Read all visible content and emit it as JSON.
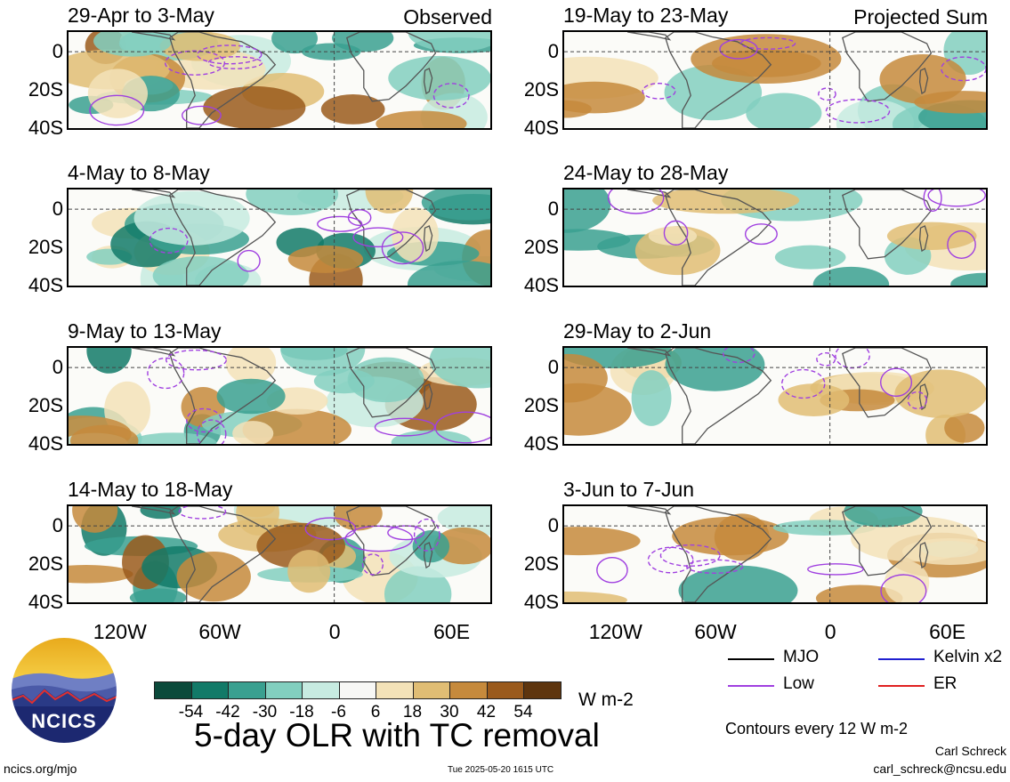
{
  "observed_label": "Observed",
  "projected_label": "Projected Sum",
  "panels_left": [
    {
      "title": "29-Apr to 3-May"
    },
    {
      "title": "4-May to 8-May"
    },
    {
      "title": "9-May to 13-May"
    },
    {
      "title": "14-May to 18-May"
    }
  ],
  "panels_right": [
    {
      "title": "19-May to 23-May"
    },
    {
      "title": "24-May to 28-May"
    },
    {
      "title": "29-May to 2-Jun"
    },
    {
      "title": "3-Jun to 7-Jun"
    }
  ],
  "lat_ticks": [
    "0",
    "20S",
    "40S"
  ],
  "lon_ticks": [
    "120W",
    "60W",
    "0",
    "60E"
  ],
  "legend": [
    {
      "label": "MJO",
      "color": "#000000"
    },
    {
      "label": "Kelvin x2",
      "color": "#1f1fd0"
    },
    {
      "label": "Low",
      "color": "#a040e0"
    },
    {
      "label": "ER",
      "color": "#e02020"
    }
  ],
  "colorbar": {
    "ticks": [
      "-54",
      "-42",
      "-30",
      "-18",
      "-6",
      "6",
      "18",
      "30",
      "42",
      "54"
    ],
    "colors": [
      "#0b4a3b",
      "#127a68",
      "#3aa090",
      "#82cfbf",
      "#c7ebe1",
      "#f7f7f5",
      "#f3e2b8",
      "#e0bd74",
      "#c68a3c",
      "#9a5a1c",
      "#5e350e"
    ],
    "units": "W m-2"
  },
  "main_title": "5-day OLR with TC removal",
  "contours_note": "Contours every 12 W m-2",
  "author": "Carl Schreck",
  "email": "carl_schreck@ncsu.edu",
  "website": "ncics.org/mjo",
  "timestamp": "Tue 2025-05-20 1615 UTC",
  "logo_text": "NCICS",
  "chart_data": {
    "type": "heatmap",
    "title": "5-day OLR with TC removal",
    "variable": "OLR anomaly",
    "units": "W m-2",
    "lon_range": [
      "150W",
      "100E"
    ],
    "lat_range": [
      "10N",
      "40S"
    ],
    "lat_ticks": [
      "0",
      "20S",
      "40S"
    ],
    "lon_ticks": [
      "120W",
      "60W",
      "0",
      "60E"
    ],
    "contour_interval": 12,
    "contour_levels": [
      -54,
      -42,
      -30,
      -18,
      -6,
      6,
      18,
      30,
      42,
      54
    ],
    "observed_periods": [
      "29-Apr to 3-May",
      "4-May to 8-May",
      "9-May to 13-May",
      "14-May to 18-May"
    ],
    "projected_periods": [
      "19-May to 23-May",
      "24-May to 28-May",
      "29-May to 2-Jun",
      "3-Jun to 7-Jun"
    ],
    "contour_types": [
      "MJO",
      "Kelvin x2",
      "Low",
      "ER"
    ]
  }
}
